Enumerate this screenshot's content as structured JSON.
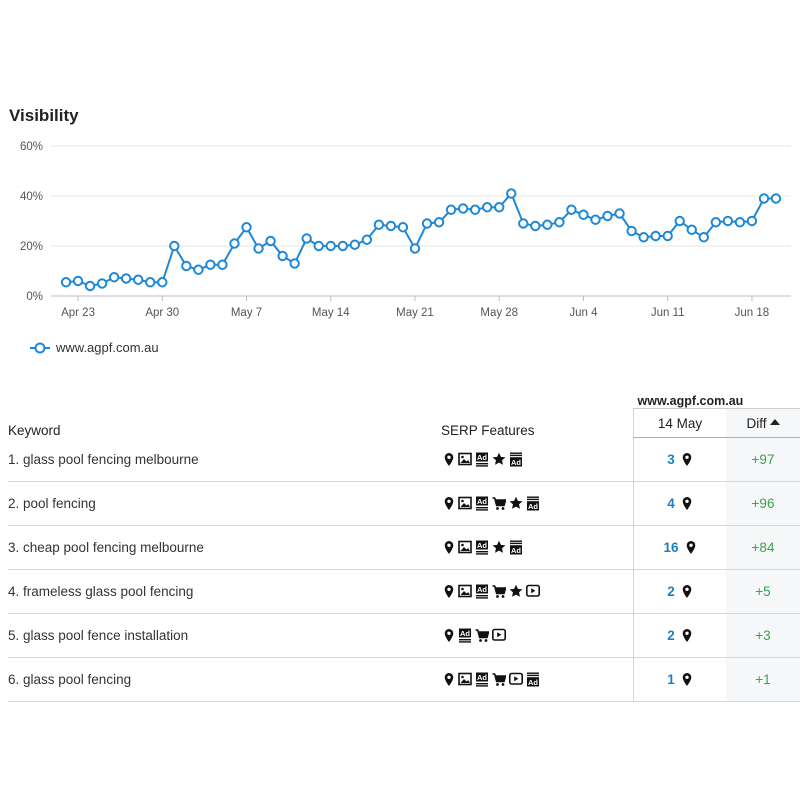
{
  "section_title": "Visibility",
  "chart_data": {
    "type": "line",
    "title": "Visibility",
    "xlabel": "",
    "ylabel": "",
    "ylim": [
      0,
      60
    ],
    "yticks": [
      "0%",
      "20%",
      "40%",
      "60%"
    ],
    "ytick_values": [
      0,
      20,
      40,
      60
    ],
    "xtick_labels": [
      "Apr 23",
      "Apr 30",
      "May 7",
      "May 14",
      "May 21",
      "May 28",
      "Jun 4",
      "Jun 11",
      "Jun 18"
    ],
    "xtick_indices": [
      1,
      8,
      15,
      22,
      29,
      36,
      43,
      50,
      57
    ],
    "grid": true,
    "legend_position": "bottom-left",
    "series": [
      {
        "name": "www.agpf.com.au",
        "color": "#1e88d6",
        "values": [
          5.5,
          6,
          4,
          5,
          7.5,
          7,
          6.5,
          5.5,
          5.5,
          20,
          12,
          10.5,
          12.5,
          12.5,
          21,
          27.5,
          19,
          22,
          16,
          13,
          23,
          20,
          20,
          20,
          20.5,
          22.5,
          28.5,
          28,
          27.5,
          19,
          29,
          29.5,
          34.5,
          35,
          34.5,
          35.5,
          35.5,
          41,
          29,
          28,
          28.5,
          29.5,
          34.5,
          32.5,
          30.5,
          32,
          33,
          26,
          23.5,
          24,
          24,
          30,
          26.5,
          23.5,
          29.5,
          30,
          29.5,
          30,
          39,
          39
        ]
      }
    ]
  },
  "table": {
    "header": {
      "keyword": "Keyword",
      "serp": "SERP Features",
      "domain": "www.agpf.com.au",
      "date": "14 May",
      "diff": "Diff"
    },
    "rows": [
      {
        "keyword": "1. glass pool fencing melbourne",
        "features": [
          "map-pin",
          "image",
          "ad",
          "star",
          "ad-bottom"
        ],
        "position": "3",
        "diff": "+97"
      },
      {
        "keyword": "2. pool fencing",
        "features": [
          "map-pin",
          "image",
          "ad",
          "cart",
          "star",
          "ad-bottom"
        ],
        "position": "4",
        "diff": "+96"
      },
      {
        "keyword": "3. cheap pool fencing melbourne",
        "features": [
          "map-pin",
          "image",
          "ad",
          "star",
          "ad-bottom"
        ],
        "position": "16",
        "diff": "+84"
      },
      {
        "keyword": "4. frameless glass pool fencing",
        "features": [
          "map-pin",
          "image",
          "ad",
          "cart",
          "star",
          "video"
        ],
        "position": "2",
        "diff": "+5"
      },
      {
        "keyword": "5. glass pool fence installation",
        "features": [
          "map-pin",
          "ad",
          "cart",
          "video"
        ],
        "position": "2",
        "diff": "+3"
      },
      {
        "keyword": "6. glass pool fencing",
        "features": [
          "map-pin",
          "image",
          "ad",
          "cart",
          "video",
          "ad-bottom"
        ],
        "position": "1",
        "diff": "+1"
      }
    ]
  }
}
